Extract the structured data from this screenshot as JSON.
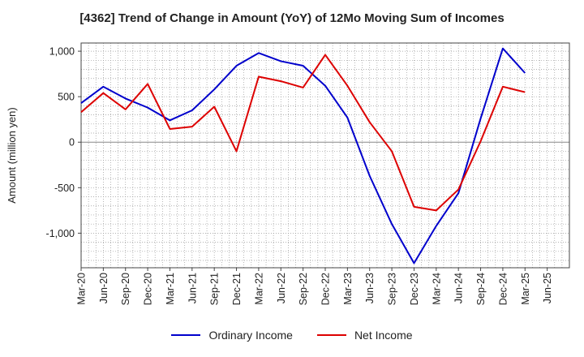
{
  "chart_data": {
    "type": "line",
    "title": "[4362]  Trend of Change in Amount (YoY) of 12Mo Moving Sum of Incomes",
    "ylabel": "Amount (million yen)",
    "xlabel": "",
    "ylim": [
      -1380,
      1090
    ],
    "yticks": [
      -1000,
      -500,
      0,
      500,
      1000
    ],
    "ytick_labels": [
      "-1,000",
      "-500",
      "0",
      "500",
      "1,000"
    ],
    "xtick_labels": [
      "Mar-20",
      "Jun-20",
      "Sep-20",
      "Dec-20",
      "Mar-21",
      "Jun-21",
      "Sep-21",
      "Dec-21",
      "Mar-22",
      "Jun-22",
      "Sep-22",
      "Dec-22",
      "Mar-23",
      "Jun-23",
      "Sep-23",
      "Dec-23",
      "Mar-24",
      "Jun-24",
      "Sep-24",
      "Dec-24",
      "Mar-25",
      "Jun-25"
    ],
    "grid": true,
    "legend_position": "bottom",
    "series": [
      {
        "name": "Ordinary Income",
        "color": "#0000cc",
        "values": [
          430,
          610,
          480,
          380,
          240,
          350,
          580,
          840,
          980,
          890,
          840,
          620,
          270,
          -370,
          -900,
          -1330,
          -920,
          -560,
          260,
          1030,
          760
        ]
      },
      {
        "name": "Net Income",
        "color": "#dd0000",
        "values": [
          330,
          540,
          360,
          640,
          145,
          170,
          390,
          -100,
          720,
          670,
          600,
          960,
          620,
          220,
          -100,
          -710,
          -750,
          -520,
          10,
          610,
          550
        ]
      }
    ]
  }
}
